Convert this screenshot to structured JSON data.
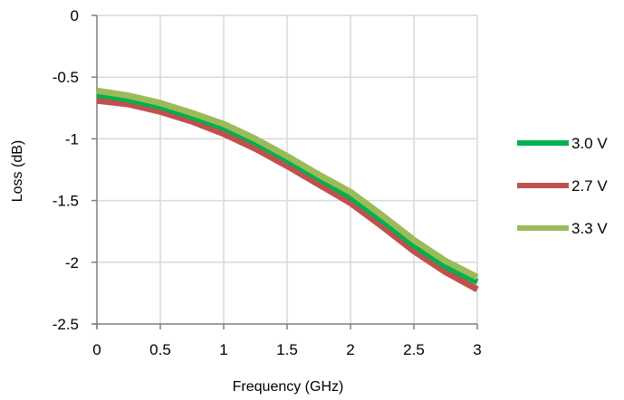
{
  "chart_data": {
    "type": "line",
    "title": "",
    "xlabel": "Frequency (GHz)",
    "ylabel": "Loss (dB)",
    "xlim": [
      0,
      3
    ],
    "ylim": [
      -2.5,
      0
    ],
    "x_ticks": [
      0,
      0.5,
      1,
      1.5,
      2,
      2.5,
      3
    ],
    "x_tick_labels": [
      "0",
      "0.5",
      "1",
      "1.5",
      "2",
      "2.5",
      "3"
    ],
    "y_ticks": [
      0,
      -0.5,
      -1,
      -1.5,
      -2,
      -2.5
    ],
    "y_tick_labels": [
      "0",
      "-0.5",
      "-1",
      "-1.5",
      "-2",
      "-2.5"
    ],
    "grid": true,
    "legend_position": "right",
    "x": [
      0,
      0.25,
      0.5,
      0.75,
      1,
      1.25,
      1.5,
      1.75,
      2,
      2.25,
      2.5,
      2.75,
      3
    ],
    "series": [
      {
        "name": "3.0 V",
        "color": "#00b050",
        "values": [
          -0.64,
          -0.68,
          -0.74,
          -0.82,
          -0.91,
          -1.03,
          -1.17,
          -1.32,
          -1.47,
          -1.66,
          -1.86,
          -2.03,
          -2.16
        ]
      },
      {
        "name": "2.7 V",
        "color": "#c0504d",
        "values": [
          -0.69,
          -0.72,
          -0.78,
          -0.86,
          -0.96,
          -1.08,
          -1.22,
          -1.37,
          -1.52,
          -1.71,
          -1.91,
          -2.08,
          -2.22
        ]
      },
      {
        "name": "3.3 V",
        "color": "#9bbb59",
        "values": [
          -0.61,
          -0.65,
          -0.71,
          -0.79,
          -0.88,
          -1.0,
          -1.14,
          -1.29,
          -1.43,
          -1.62,
          -1.82,
          -1.99,
          -2.12
        ]
      }
    ]
  }
}
